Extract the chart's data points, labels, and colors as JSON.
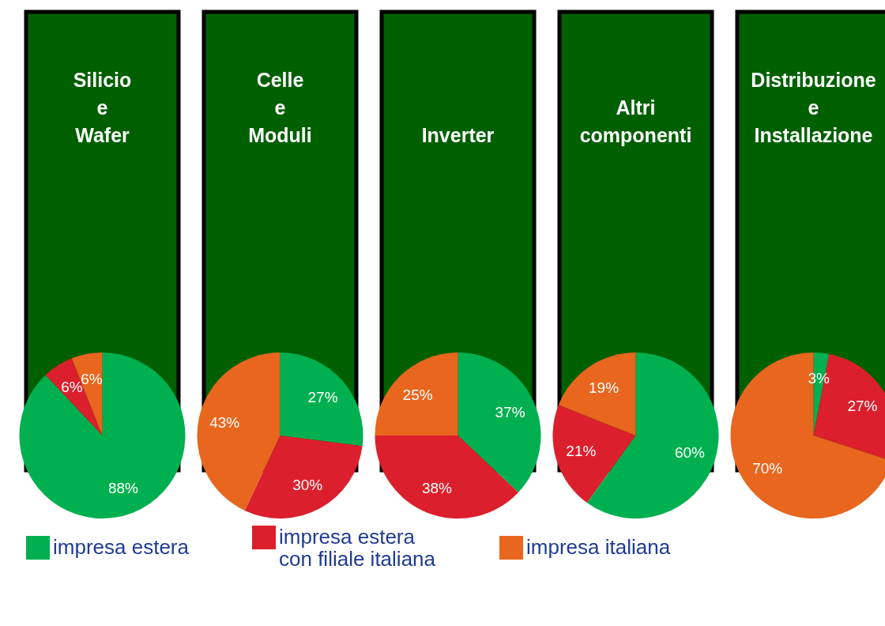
{
  "chart_data": [
    {
      "type": "pie",
      "title": "Silicio\ne\nWafer",
      "categories": [
        "impresa estera",
        "impresa estera\ncon filiale italiana",
        "impresa italiana"
      ],
      "values": [
        88,
        6,
        6
      ],
      "value_labels": [
        "88%",
        "6%",
        "6%"
      ],
      "colors": [
        "#00b050",
        "#dc1f2c",
        "#e8661e"
      ],
      "legend": "bottom"
    },
    {
      "type": "pie",
      "title": "Celle\ne\nModuli",
      "categories": [
        null,
        null,
        null
      ],
      "values": [
        27,
        30,
        43
      ],
      "value_labels": [
        "27%",
        "30%",
        "43%"
      ],
      "colors": [
        "#00b050",
        "#dc1f2c",
        "#e8661e"
      ]
    },
    {
      "type": "pie",
      "title": "Inverter",
      "categories": [
        null,
        null,
        null
      ],
      "values": [
        37,
        38,
        25
      ],
      "value_labels": [
        "37%",
        "38%",
        "25%"
      ],
      "colors": [
        "#00b050",
        "#dc1f2c",
        "#e8661e"
      ]
    },
    {
      "type": "pie",
      "title": "Altri\ncomponenti",
      "categories": [
        null,
        null,
        null
      ],
      "values": [
        60,
        21,
        19
      ],
      "value_labels": [
        "60%",
        "21%",
        "19%"
      ],
      "colors": [
        "#00b050",
        "#dc1f2c",
        "#e8661e"
      ]
    },
    {
      "type": "pie",
      "title": "Distribuzione\ne\nInstallazione",
      "categories": [
        null,
        null,
        null
      ],
      "values": [
        3,
        27,
        70
      ],
      "value_labels": [
        "3%",
        "27%",
        "70%"
      ],
      "colors": [
        "#00b050",
        "#dc1f2c",
        "#e8661e"
      ]
    }
  ]
}
